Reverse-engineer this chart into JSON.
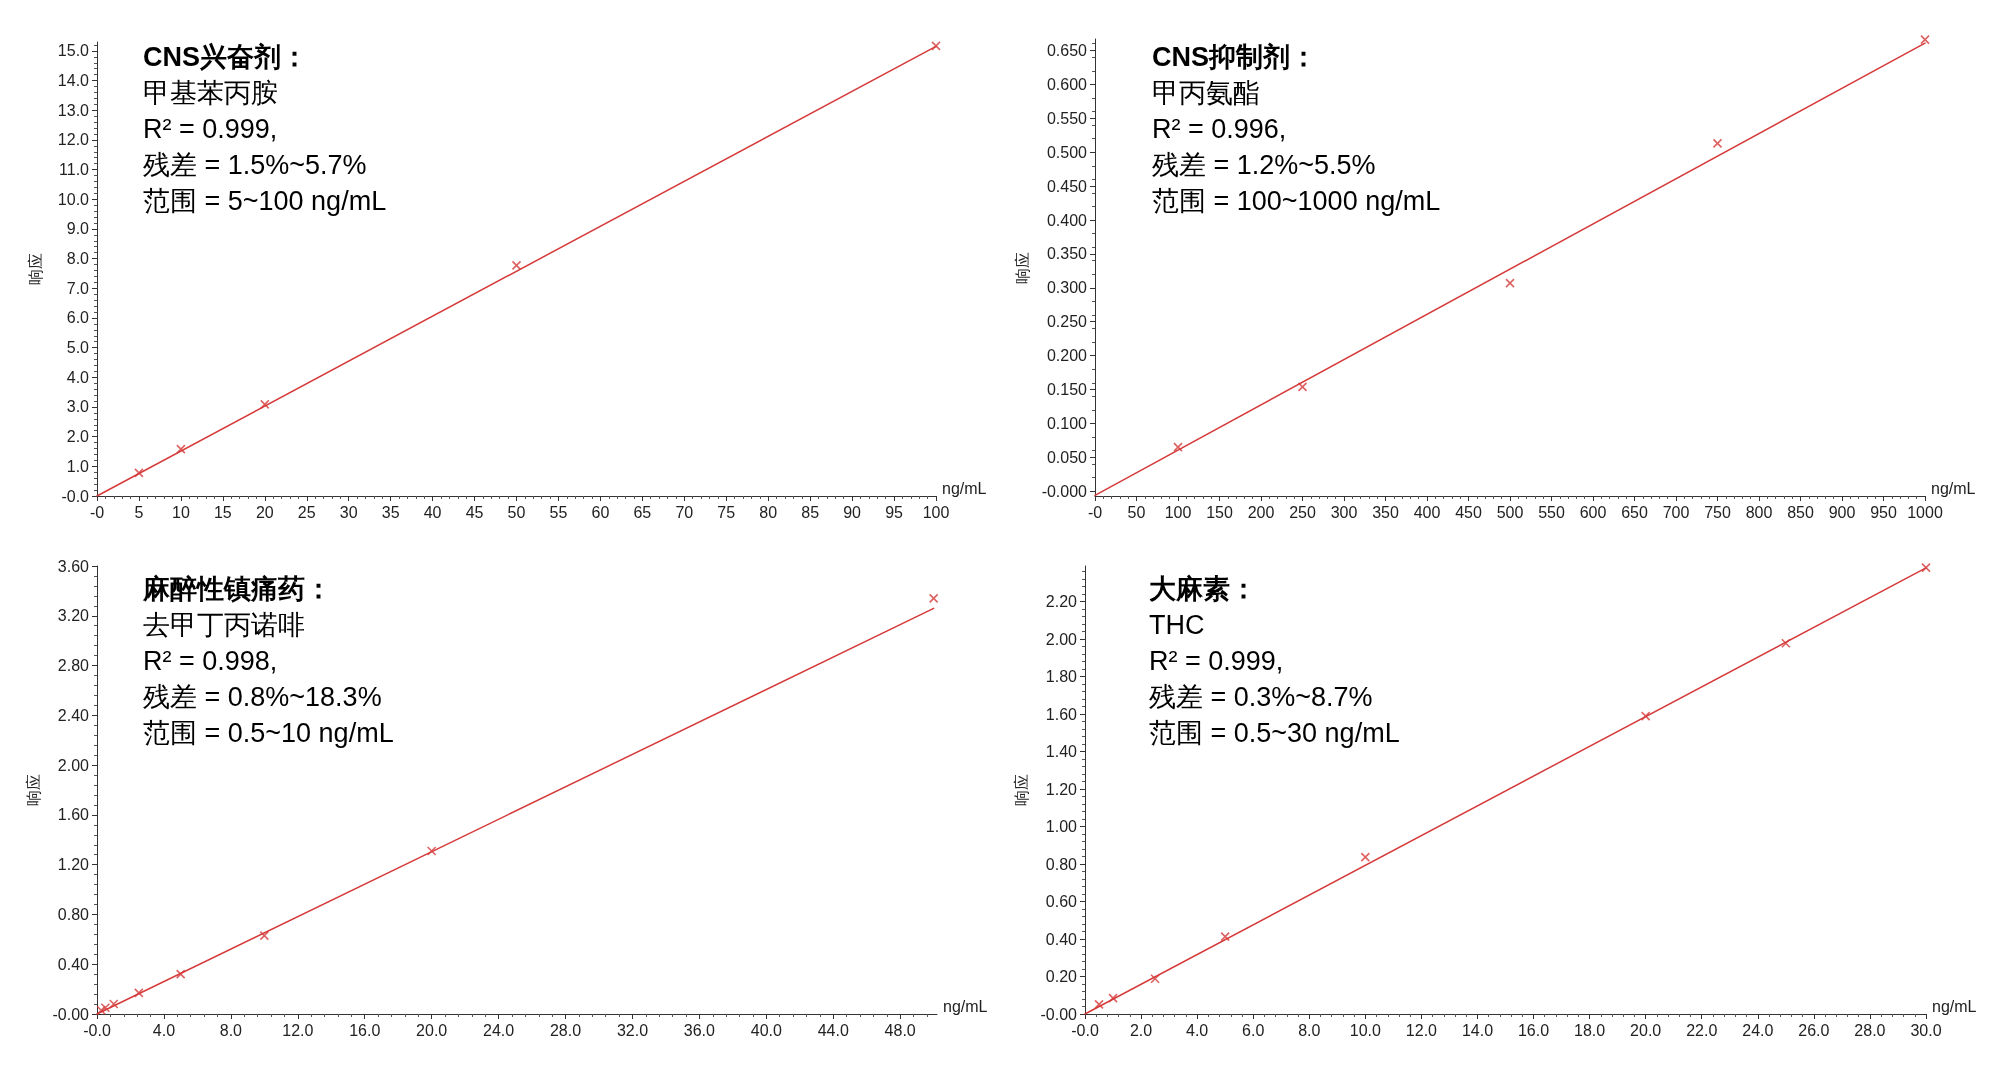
{
  "chart_data": [
    {
      "type": "scatter",
      "title": "CNS兴奋剂：",
      "subtitle": "甲基苯丙胺",
      "xlabel": "ng/mL",
      "ylabel": "响应",
      "annotations": [
        "R² = 0.999,",
        "残差 = 1.5%~5.7%",
        "范围 = 5~100 ng/mL"
      ],
      "marker": "cross",
      "line_style": "solid",
      "xlim": [
        0,
        100
      ],
      "xticks": [
        {
          "value": 0,
          "label": "-0"
        },
        5,
        10,
        15,
        20,
        25,
        30,
        35,
        40,
        45,
        50,
        55,
        60,
        65,
        70,
        75,
        80,
        85,
        90,
        95,
        100
      ],
      "ylim": [
        0,
        15.3
      ],
      "yticks": [
        {
          "value": 0,
          "label": "-0.0"
        },
        {
          "value": 1,
          "label": "1.0"
        },
        {
          "value": 2,
          "label": "2.0"
        },
        {
          "value": 3,
          "label": "3.0"
        },
        {
          "value": 4,
          "label": "4.0"
        },
        {
          "value": 5,
          "label": "5.0"
        },
        {
          "value": 6,
          "label": "6.0"
        },
        {
          "value": 7,
          "label": "7.0"
        },
        {
          "value": 8,
          "label": "8.0"
        },
        {
          "value": 9,
          "label": "9.0"
        },
        {
          "value": 10,
          "label": "10.0"
        },
        {
          "value": 11,
          "label": "11.0"
        },
        {
          "value": 12,
          "label": "12.0"
        },
        {
          "value": 13,
          "label": "13.0"
        },
        {
          "value": 14,
          "label": "14.0"
        },
        {
          "value": 15,
          "label": "15.0"
        }
      ],
      "series": [
        {
          "color": "#d63a3a",
          "x": [
            5,
            10,
            20,
            50,
            100
          ],
          "values": [
            0.78,
            1.58,
            3.09,
            7.77,
            15.17
          ]
        },
        {
          "type": "line",
          "color": "#d63a3a",
          "marker": "none",
          "x": [
            0,
            100
          ],
          "values": [
            0,
            15.15
          ]
        }
      ]
    },
    {
      "type": "scatter",
      "title": "CNS抑制剂：",
      "subtitle": "甲丙氨酯",
      "xlabel": "ng/mL",
      "ylabel": "响应",
      "annotations": [
        "R² = 0.996,",
        "残差 = 1.2%~5.5%",
        "范围 = 100~1000 ng/mL"
      ],
      "marker": "cross",
      "line_style": "solid",
      "xlim": [
        0,
        1000
      ],
      "xticks": [
        {
          "value": 0,
          "label": "-0"
        },
        50,
        100,
        150,
        200,
        250,
        300,
        350,
        400,
        450,
        500,
        550,
        600,
        650,
        700,
        750,
        800,
        850,
        900,
        950,
        1000
      ],
      "ylim": [
        -0.007,
        0.667
      ],
      "yticks": [
        {
          "value": 0,
          "label": "-0.000"
        },
        {
          "value": 0.05,
          "label": "0.050"
        },
        {
          "value": 0.1,
          "label": "0.100"
        },
        {
          "value": 0.15,
          "label": "0.150"
        },
        {
          "value": 0.2,
          "label": "0.200"
        },
        {
          "value": 0.25,
          "label": "0.250"
        },
        {
          "value": 0.3,
          "label": "0.300"
        },
        {
          "value": 0.35,
          "label": "0.350"
        },
        {
          "value": 0.4,
          "label": "0.400"
        },
        {
          "value": 0.45,
          "label": "0.450"
        },
        {
          "value": 0.5,
          "label": "0.500"
        },
        {
          "value": 0.55,
          "label": "0.550"
        },
        {
          "value": 0.6,
          "label": "0.600"
        },
        {
          "value": 0.65,
          "label": "0.650"
        }
      ],
      "series": [
        {
          "color": "#d63a3a",
          "x": [
            100,
            250,
            500,
            750,
            1000
          ],
          "values": [
            0.065,
            0.154,
            0.307,
            0.513,
            0.666
          ]
        },
        {
          "type": "line",
          "color": "#d63a3a",
          "marker": "none",
          "x": [
            0,
            1000
          ],
          "values": [
            -0.006,
            0.661
          ]
        }
      ]
    },
    {
      "type": "scatter",
      "title": "麻醉性镇痛药：",
      "subtitle": "去甲丁丙诺啡",
      "xlabel": "ng/mL",
      "ylabel": "响应",
      "annotations": [
        "R² = 0.998,",
        "残差 = 0.8%~18.3%",
        "范围 = 0.5~10 ng/mL"
      ],
      "marker": "cross",
      "line_style": "solid",
      "xlim": [
        0,
        50.2
      ],
      "xticks": [
        {
          "value": 0,
          "label": "-0.0"
        },
        {
          "value": 4,
          "label": "4.0"
        },
        {
          "value": 8,
          "label": "8.0"
        },
        {
          "value": 12,
          "label": "12.0"
        },
        {
          "value": 16,
          "label": "16.0"
        },
        {
          "value": 20,
          "label": "20.0"
        },
        {
          "value": 24,
          "label": "24.0"
        },
        {
          "value": 28,
          "label": "28.0"
        },
        {
          "value": 32,
          "label": "32.0"
        },
        {
          "value": 36,
          "label": "36.0"
        },
        {
          "value": 40,
          "label": "40.0"
        },
        {
          "value": 44,
          "label": "44.0"
        },
        {
          "value": 48,
          "label": "48.0"
        }
      ],
      "ylim": [
        0,
        3.6
      ],
      "yticks": [
        {
          "value": 0,
          "label": "-0.00"
        },
        {
          "value": 0.4,
          "label": "0.40"
        },
        {
          "value": 0.8,
          "label": "0.80"
        },
        {
          "value": 1.2,
          "label": "1.20"
        },
        {
          "value": 1.6,
          "label": "1.60"
        },
        {
          "value": 2,
          "label": "2.00"
        },
        {
          "value": 2.4,
          "label": "2.40"
        },
        {
          "value": 2.8,
          "label": "2.80"
        },
        {
          "value": 3.2,
          "label": "3.20"
        },
        {
          "value": 3.6,
          "label": "3.60"
        }
      ],
      "series": [
        {
          "color": "#d63a3a",
          "x": [
            0.25,
            0.5,
            1,
            2.5,
            5,
            10,
            20,
            50
          ],
          "values": [
            0.03,
            0.05,
            0.08,
            0.17,
            0.32,
            0.63,
            1.31,
            3.34
          ]
        },
        {
          "type": "line",
          "color": "#d63a3a",
          "marker": "none",
          "x": [
            0,
            50
          ],
          "values": [
            0,
            3.26
          ]
        }
      ]
    },
    {
      "type": "scatter",
      "title": "大麻素：",
      "subtitle": "THC",
      "xlabel": "ng/mL",
      "ylabel": "响应",
      "annotations": [
        "R² = 0.999,",
        "残差 = 0.3%~8.7%",
        "范围 = 0.5~30 ng/mL"
      ],
      "marker": "cross",
      "line_style": "solid",
      "xlim": [
        0,
        30
      ],
      "xticks": [
        {
          "value": 0,
          "label": "-0.0"
        },
        {
          "value": 2,
          "label": "2.0"
        },
        {
          "value": 4,
          "label": "4.0"
        },
        {
          "value": 6,
          "label": "6.0"
        },
        {
          "value": 8,
          "label": "8.0"
        },
        {
          "value": 10,
          "label": "10.0"
        },
        {
          "value": 12,
          "label": "12.0"
        },
        {
          "value": 14,
          "label": "14.0"
        },
        {
          "value": 16,
          "label": "16.0"
        },
        {
          "value": 18,
          "label": "18.0"
        },
        {
          "value": 20,
          "label": "20.0"
        },
        {
          "value": 22,
          "label": "22.0"
        },
        {
          "value": 24,
          "label": "24.0"
        },
        {
          "value": 26,
          "label": "26.0"
        },
        {
          "value": 28,
          "label": "28.0"
        },
        {
          "value": 30,
          "label": "30.0"
        }
      ],
      "ylim": [
        0,
        2.39
      ],
      "yticks": [
        {
          "value": 0,
          "label": "-0.00"
        },
        {
          "value": 0.2,
          "label": "0.20"
        },
        {
          "value": 0.4,
          "label": "0.40"
        },
        {
          "value": 0.6,
          "label": "0.60"
        },
        {
          "value": 0.8,
          "label": "0.80"
        },
        {
          "value": 1,
          "label": "1.00"
        },
        {
          "value": 1.2,
          "label": "1.20"
        },
        {
          "value": 1.4,
          "label": "1.40"
        },
        {
          "value": 1.6,
          "label": "1.60"
        },
        {
          "value": 1.8,
          "label": "1.80"
        },
        {
          "value": 2,
          "label": "2.00"
        },
        {
          "value": 2.2,
          "label": "2.20"
        }
      ],
      "series": [
        {
          "color": "#d63a3a",
          "x": [
            0.5,
            1,
            2.5,
            5,
            10,
            20,
            25,
            30
          ],
          "values": [
            0.051,
            0.085,
            0.188,
            0.413,
            0.837,
            1.589,
            1.978,
            2.381
          ]
        },
        {
          "type": "line",
          "color": "#d63a3a",
          "marker": "none",
          "x": [
            0,
            30
          ],
          "values": [
            0,
            2.38
          ]
        }
      ]
    }
  ]
}
